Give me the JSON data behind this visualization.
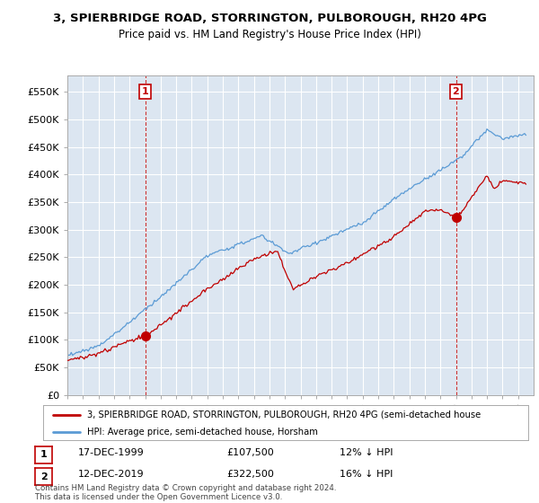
{
  "title": "3, SPIERBRIDGE ROAD, STORRINGTON, PULBOROUGH, RH20 4PG",
  "subtitle": "Price paid vs. HM Land Registry's House Price Index (HPI)",
  "ylim": [
    0,
    580000
  ],
  "yticks": [
    0,
    50000,
    100000,
    150000,
    200000,
    250000,
    300000,
    350000,
    400000,
    450000,
    500000,
    550000
  ],
  "ytick_labels": [
    "£0",
    "£50K",
    "£100K",
    "£150K",
    "£200K",
    "£250K",
    "£300K",
    "£350K",
    "£400K",
    "£450K",
    "£500K",
    "£550K"
  ],
  "hpi_color": "#5b9bd5",
  "price_color": "#c00000",
  "marker_color": "#c00000",
  "plot_bg_color": "#dce6f1",
  "fig_bg_color": "#ffffff",
  "grid_color": "#ffffff",
  "sale1_year": 2000.0,
  "sale1_price": 107500,
  "sale1_label": "1",
  "sale2_year": 2020.0,
  "sale2_price": 322500,
  "sale2_label": "2",
  "legend_price_label": "3, SPIERBRIDGE ROAD, STORRINGTON, PULBOROUGH, RH20 4PG (semi-detached house",
  "legend_hpi_label": "HPI: Average price, semi-detached house, Horsham",
  "note1_label": "1",
  "note1_date": "17-DEC-1999",
  "note1_price": "£107,500",
  "note1_pct": "12% ↓ HPI",
  "note2_label": "2",
  "note2_date": "12-DEC-2019",
  "note2_price": "£322,500",
  "note2_pct": "16% ↓ HPI",
  "footer": "Contains HM Land Registry data © Crown copyright and database right 2024.\nThis data is licensed under the Open Government Licence v3.0.",
  "xmin": 1995,
  "xmax": 2025
}
